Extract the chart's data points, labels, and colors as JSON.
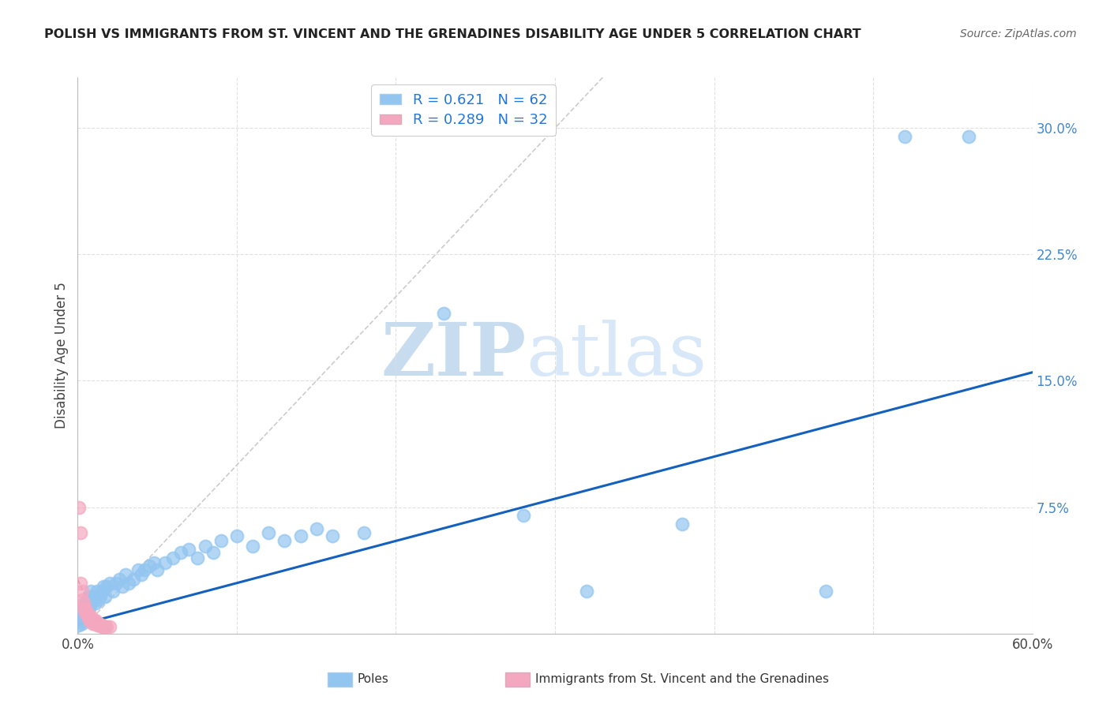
{
  "title": "POLISH VS IMMIGRANTS FROM ST. VINCENT AND THE GRENADINES DISABILITY AGE UNDER 5 CORRELATION CHART",
  "source": "Source: ZipAtlas.com",
  "ylabel": "Disability Age Under 5",
  "xlim": [
    0.0,
    0.6
  ],
  "ylim": [
    0.0,
    0.33
  ],
  "legend_blue_r": "0.621",
  "legend_blue_n": "62",
  "legend_pink_r": "0.289",
  "legend_pink_n": "32",
  "legend_blue_label": "Poles",
  "legend_pink_label": "Immigrants from St. Vincent and the Grenadines",
  "blue_color": "#92C5F0",
  "pink_color": "#F4A8C0",
  "blue_line_color": "#1460BD",
  "pink_line_color": "#E06080",
  "blue_scatter": [
    [
      0.001,
      0.005
    ],
    [
      0.002,
      0.008
    ],
    [
      0.002,
      0.012
    ],
    [
      0.003,
      0.006
    ],
    [
      0.003,
      0.01
    ],
    [
      0.004,
      0.008
    ],
    [
      0.004,
      0.015
    ],
    [
      0.005,
      0.01
    ],
    [
      0.005,
      0.018
    ],
    [
      0.006,
      0.012
    ],
    [
      0.006,
      0.02
    ],
    [
      0.007,
      0.015
    ],
    [
      0.007,
      0.022
    ],
    [
      0.008,
      0.018
    ],
    [
      0.008,
      0.025
    ],
    [
      0.009,
      0.02
    ],
    [
      0.01,
      0.022
    ],
    [
      0.011,
      0.018
    ],
    [
      0.012,
      0.025
    ],
    [
      0.013,
      0.02
    ],
    [
      0.014,
      0.022
    ],
    [
      0.015,
      0.025
    ],
    [
      0.016,
      0.028
    ],
    [
      0.017,
      0.022
    ],
    [
      0.018,
      0.028
    ],
    [
      0.02,
      0.03
    ],
    [
      0.022,
      0.025
    ],
    [
      0.024,
      0.03
    ],
    [
      0.026,
      0.032
    ],
    [
      0.028,
      0.028
    ],
    [
      0.03,
      0.035
    ],
    [
      0.032,
      0.03
    ],
    [
      0.035,
      0.032
    ],
    [
      0.038,
      0.038
    ],
    [
      0.04,
      0.035
    ],
    [
      0.042,
      0.038
    ],
    [
      0.045,
      0.04
    ],
    [
      0.048,
      0.042
    ],
    [
      0.05,
      0.038
    ],
    [
      0.055,
      0.042
    ],
    [
      0.06,
      0.045
    ],
    [
      0.065,
      0.048
    ],
    [
      0.07,
      0.05
    ],
    [
      0.075,
      0.045
    ],
    [
      0.08,
      0.052
    ],
    [
      0.085,
      0.048
    ],
    [
      0.09,
      0.055
    ],
    [
      0.1,
      0.058
    ],
    [
      0.11,
      0.052
    ],
    [
      0.12,
      0.06
    ],
    [
      0.13,
      0.055
    ],
    [
      0.14,
      0.058
    ],
    [
      0.15,
      0.062
    ],
    [
      0.16,
      0.058
    ],
    [
      0.18,
      0.06
    ],
    [
      0.23,
      0.19
    ],
    [
      0.28,
      0.07
    ],
    [
      0.32,
      0.025
    ],
    [
      0.38,
      0.065
    ],
    [
      0.47,
      0.025
    ],
    [
      0.52,
      0.295
    ],
    [
      0.56,
      0.295
    ]
  ],
  "pink_scatter": [
    [
      0.001,
      0.075
    ],
    [
      0.002,
      0.06
    ],
    [
      0.002,
      0.03
    ],
    [
      0.003,
      0.025
    ],
    [
      0.003,
      0.02
    ],
    [
      0.004,
      0.018
    ],
    [
      0.004,
      0.015
    ],
    [
      0.005,
      0.015
    ],
    [
      0.005,
      0.012
    ],
    [
      0.006,
      0.012
    ],
    [
      0.006,
      0.01
    ],
    [
      0.007,
      0.01
    ],
    [
      0.007,
      0.008
    ],
    [
      0.008,
      0.01
    ],
    [
      0.008,
      0.008
    ],
    [
      0.009,
      0.008
    ],
    [
      0.009,
      0.006
    ],
    [
      0.01,
      0.008
    ],
    [
      0.01,
      0.006
    ],
    [
      0.011,
      0.008
    ],
    [
      0.011,
      0.006
    ],
    [
      0.012,
      0.006
    ],
    [
      0.012,
      0.005
    ],
    [
      0.013,
      0.006
    ],
    [
      0.013,
      0.005
    ],
    [
      0.014,
      0.005
    ],
    [
      0.015,
      0.005
    ],
    [
      0.015,
      0.004
    ],
    [
      0.016,
      0.004
    ],
    [
      0.017,
      0.004
    ],
    [
      0.018,
      0.004
    ],
    [
      0.02,
      0.004
    ]
  ],
  "blue_trend_x": [
    0.0,
    0.6
  ],
  "blue_trend_y": [
    0.005,
    0.155
  ],
  "ref_line_end": 0.33,
  "watermark_zip": "ZIP",
  "watermark_atlas": "atlas",
  "background_color": "#FFFFFF",
  "grid_color": "#DDDDDD",
  "title_fontsize": 11.5,
  "source_fontsize": 10
}
